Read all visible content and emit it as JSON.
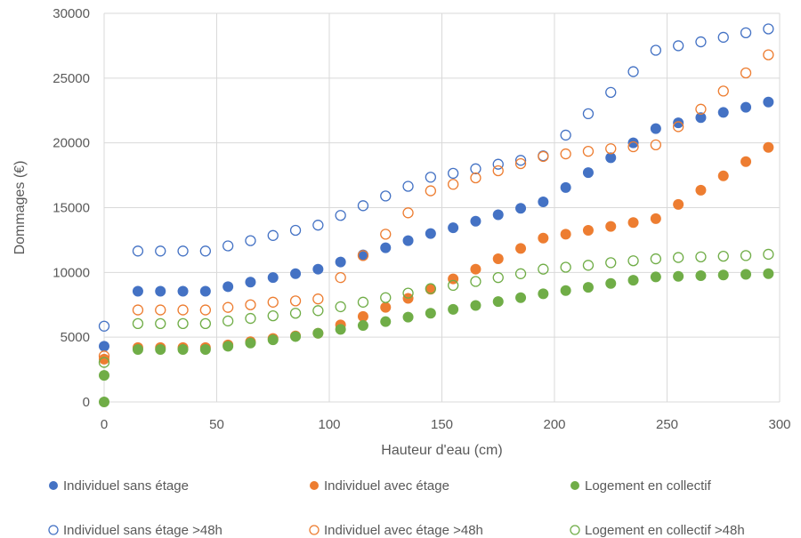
{
  "chart_data": {
    "type": "scatter",
    "xlabel": "Hauteur d'eau (cm)",
    "ylabel": "Dommages (€)",
    "xlim": [
      0,
      300
    ],
    "ylim": [
      0,
      30000
    ],
    "xticks": [
      0,
      50,
      100,
      150,
      200,
      250,
      300
    ],
    "yticks": [
      0,
      5000,
      10000,
      15000,
      20000,
      25000,
      30000
    ],
    "grid": "vertical and horizontal major gridlines",
    "legend_position": "bottom",
    "x": [
      0,
      15,
      25,
      35,
      45,
      55,
      65,
      75,
      85,
      95,
      105,
      115,
      125,
      135,
      145,
      155,
      165,
      175,
      185,
      195,
      205,
      215,
      225,
      235,
      245,
      255,
      265,
      275,
      285,
      295
    ],
    "series": [
      {
        "name": "Individuel sans étage",
        "color": "#4472c4",
        "marker": "filled",
        "values": [
          4300,
          8550,
          8550,
          8550,
          8550,
          8900,
          9250,
          9600,
          9900,
          10250,
          10800,
          11350,
          11900,
          12450,
          13000,
          13450,
          13950,
          14450,
          14950,
          15450,
          16550,
          17700,
          18850,
          20000,
          21100,
          21550,
          21950,
          22350,
          22750,
          23150
        ]
      },
      {
        "name": "Individuel avec étage",
        "color": "#ed7d31",
        "marker": "filled",
        "values": [
          3300,
          4200,
          4200,
          4200,
          4200,
          4400,
          4650,
          4900,
          5100,
          5300,
          5950,
          6600,
          7300,
          8000,
          8700,
          9500,
          10250,
          11050,
          11850,
          12650,
          12950,
          13250,
          13550,
          13850,
          14150,
          15250,
          16350,
          17450,
          18550,
          19650
        ]
      },
      {
        "name": "Logement en collectif",
        "color": "#70ad47",
        "marker": "filled",
        "values": [
          2050,
          4050,
          4050,
          4050,
          4050,
          4300,
          4550,
          4800,
          5050,
          5300,
          5600,
          5900,
          6200,
          6550,
          6850,
          7150,
          7450,
          7750,
          8050,
          8350,
          8600,
          8850,
          9150,
          9400,
          9650,
          9700,
          9750,
          9800,
          9850,
          9900
        ]
      },
      {
        "name": "Individuel sans étage >48h",
        "color": "#4472c4",
        "marker": "hollow",
        "values": [
          5850,
          11650,
          11650,
          11650,
          11650,
          12050,
          12450,
          12850,
          13250,
          13650,
          14400,
          15150,
          15900,
          16650,
          17350,
          17650,
          18000,
          18350,
          18650,
          19000,
          20600,
          22250,
          23900,
          25500,
          27150,
          27500,
          27800,
          28150,
          28500,
          28800
        ]
      },
      {
        "name": "Individuel avec étage >48h",
        "color": "#ed7d31",
        "marker": "hollow",
        "values": [
          3550,
          7100,
          7100,
          7100,
          7100,
          7300,
          7500,
          7700,
          7800,
          7950,
          9600,
          11300,
          12950,
          14600,
          16300,
          16800,
          17300,
          17850,
          18400,
          18950,
          19150,
          19350,
          19550,
          19700,
          19850,
          21250,
          22600,
          24000,
          25400,
          26800
        ]
      },
      {
        "name": "Logement en collectif >48h",
        "color": "#70ad47",
        "marker": "hollow",
        "values": [
          3050,
          6050,
          6050,
          6050,
          6050,
          6250,
          6450,
          6650,
          6850,
          7050,
          7350,
          7700,
          8050,
          8400,
          8750,
          9000,
          9300,
          9600,
          9900,
          10250,
          10400,
          10550,
          10750,
          10900,
          11050,
          11150,
          11200,
          11250,
          11300,
          11400
        ]
      }
    ],
    "origin_point": {
      "x": 0,
      "y": 0,
      "color": "#70ad47"
    }
  }
}
